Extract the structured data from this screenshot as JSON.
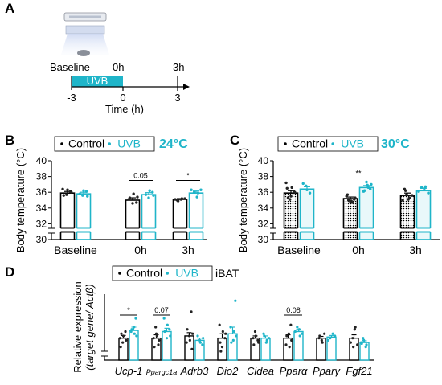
{
  "colors": {
    "control": "#000000",
    "uvb": "#1fb5c9",
    "uvb_fill": "#e9f8fa",
    "dot_control": "#222222"
  },
  "panel_a": {
    "label": "A",
    "baseline_label": "Baseline",
    "uvb_label": "UVB",
    "start_label": "0h",
    "end_label": "3h",
    "ticks": [
      "-3",
      "0",
      "3"
    ],
    "xlabel": "Time (h)"
  },
  "chart_data": [
    {
      "panel": "B",
      "type": "bar",
      "temperature": "24°C",
      "ylabel": "Body temperature (°C)",
      "ylim": [
        30,
        40
      ],
      "yticks": [
        "30",
        "32",
        "34",
        "36",
        "38",
        "40"
      ],
      "axis_break": true,
      "categories": [
        "Baseline",
        "0h",
        "3h"
      ],
      "legend": [
        "Control",
        "UVB"
      ],
      "series": [
        {
          "name": "Control",
          "values": [
            35.9,
            35.0,
            35.1
          ],
          "errors": [
            0.2,
            0.3,
            0.1
          ],
          "points": [
            [
              36.4,
              35.7,
              36.1,
              35.6,
              36.3,
              36.0
            ],
            [
              35.1,
              34.6,
              34.7,
              35.3,
              35.8,
              35.4
            ],
            [
              35.0,
              35.1,
              35.2,
              34.9,
              35.2,
              35.1
            ]
          ]
        },
        {
          "name": "UVB",
          "values": [
            35.8,
            35.7,
            35.9
          ],
          "errors": [
            0.2,
            0.25,
            0.25
          ],
          "points": [
            [
              35.6,
              36.1,
              35.8,
              36.2,
              35.5
            ],
            [
              35.3,
              36.0,
              35.7,
              36.2,
              35.6
            ],
            [
              35.4,
              36.3,
              36.0,
              35.9,
              36.3
            ]
          ]
        }
      ],
      "annotations": [
        {
          "category": "0h",
          "text": "0.05"
        },
        {
          "category": "3h",
          "text": "*"
        }
      ]
    },
    {
      "panel": "C",
      "type": "bar",
      "temperature": "30°C",
      "ylabel": "Body temperature (°C)",
      "ylim": [
        30,
        40
      ],
      "yticks": [
        "30",
        "32",
        "34",
        "36",
        "38",
        "40"
      ],
      "axis_break": true,
      "categories": [
        "Baseline",
        "0h",
        "3h"
      ],
      "legend": [
        "Control",
        "UVB"
      ],
      "series": [
        {
          "name": "Control",
          "values": [
            35.9,
            35.2,
            35.6
          ],
          "errors": [
            0.3,
            0.2,
            0.3
          ],
          "points": [
            [
              37.2,
              35.1,
              36.1,
              36.5,
              35.5,
              36.0,
              35.3,
              36.6
            ],
            [
              35.5,
              34.8,
              35.1,
              35.7,
              34.9,
              35.3,
              35.0,
              34.7
            ],
            [
              36.4,
              35.1,
              35.6,
              36.2,
              35.3,
              35.0,
              35.7
            ]
          ]
        },
        {
          "name": "UVB",
          "values": [
            36.4,
            36.6,
            36.2
          ],
          "errors": [
            0.3,
            0.25,
            0.3
          ],
          "points": [
            [
              36.8,
              35.9,
              37.1,
              36.3
            ],
            [
              37.3,
              36.4,
              36.1,
              36.9,
              37.0,
              36.2,
              36.6
            ],
            [
              36.5,
              35.9,
              36.6,
              36.7,
              36.1
            ]
          ]
        }
      ],
      "annotations": [
        {
          "category": "0h",
          "text": "**"
        }
      ]
    },
    {
      "panel": "D",
      "type": "bar",
      "tissue": "iBAT",
      "ylabel_line1": "Relative expression",
      "ylabel_line2": "(target gene/ Actβ)",
      "ylim": [
        0,
        2
      ],
      "axis_break": true,
      "legend": [
        "Control",
        "UVB"
      ],
      "categories": [
        "Ucp-1",
        "Ppargc1a",
        "Adrb3",
        "Dio2",
        "Cidea",
        "Pparα",
        "Pparγ",
        "Fgf21"
      ],
      "series": [
        {
          "name": "Control",
          "values": [
            1.0,
            1.0,
            1.1,
            1.0,
            1.0,
            1.0,
            1.0,
            1.0
          ],
          "errors": [
            0.12,
            0.15,
            0.15,
            0.2,
            0.1,
            0.15,
            0.08,
            0.15
          ],
          "points": [
            [
              1.0,
              0.8,
              1.3,
              0.6,
              1.1,
              0.9,
              1.2
            ],
            [
              1.5,
              0.7,
              1.0,
              1.2,
              0.9,
              0.6,
              1.1
            ],
            [
              2.2,
              0.8,
              1.1,
              0.5,
              1.4,
              0.9,
              1.2
            ],
            [
              1.6,
              0.6,
              1.0,
              0.8,
              1.3,
              1.2,
              0.4
            ],
            [
              1.3,
              0.9,
              1.0,
              1.1,
              0.8,
              0.7
            ],
            [
              1.6,
              0.7,
              1.2,
              0.9,
              1.1,
              0.6
            ],
            [
              1.0,
              0.9,
              1.2,
              1.1,
              0.8
            ],
            [
              1.4,
              0.7,
              1.0,
              1.5,
              0.8,
              0.6
            ]
          ]
        },
        {
          "name": "UVB",
          "values": [
            1.35,
            1.3,
            0.9,
            1.2,
            1.0,
            1.3,
            1.05,
            0.8
          ],
          "errors": [
            0.15,
            0.15,
            0.1,
            0.3,
            0.1,
            0.1,
            0.07,
            0.08
          ],
          "points": [
            [
              1.9,
              1.3,
              1.5,
              1.1,
              1.4,
              1.2
            ],
            [
              1.9,
              1.0,
              1.4,
              1.3,
              1.6,
              1.1
            ],
            [
              0.9,
              0.7,
              1.1,
              0.8,
              1.0
            ],
            [
              2.7,
              1.5,
              0.9,
              1.1,
              0.8,
              1.3
            ],
            [
              1.2,
              0.8,
              1.0,
              1.1,
              0.9
            ],
            [
              1.4,
              1.2,
              1.5,
              1.1,
              1.3
            ],
            [
              1.1,
              1.0,
              1.2,
              0.9
            ],
            [
              1.0,
              0.6,
              0.8,
              0.9,
              0.7,
              0.75
            ]
          ]
        }
      ],
      "annotations": [
        {
          "category": "Ucp-1",
          "text": "*"
        },
        {
          "category": "Ppargc1a",
          "text": "0.07"
        },
        {
          "category": "Pparα",
          "text": "0.08"
        }
      ]
    }
  ]
}
